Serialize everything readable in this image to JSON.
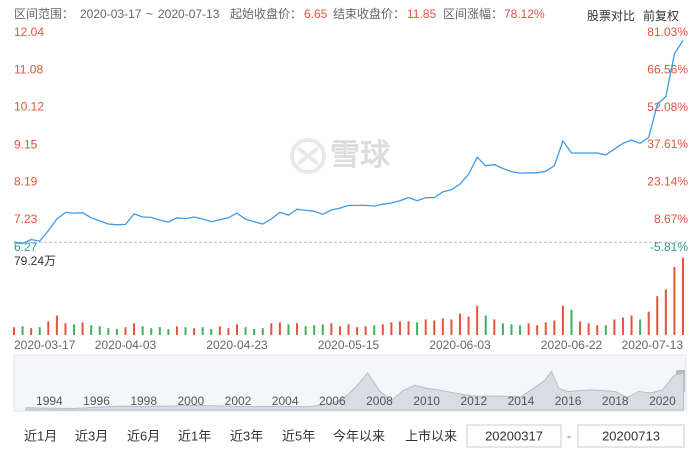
{
  "info": {
    "range_label": "区间范围：",
    "range_start": "2020-03-17",
    "range_sep": "~",
    "range_end": "2020-07-13",
    "start_label": "起始收盘价：",
    "start_price": 6.65,
    "end_label": "结束收盘价：",
    "end_price": 11.85,
    "change_label": "区间涨幅：",
    "change": "78.12%",
    "compare": "股票对比",
    "adjust": "前复权"
  },
  "watermark": "雪球",
  "chart_data": {
    "type": "line",
    "categories": [
      "2020-03-17",
      null,
      null,
      null,
      null,
      null,
      null,
      null,
      null,
      null,
      null,
      null,
      null,
      "2020-04-03",
      null,
      null,
      null,
      null,
      null,
      null,
      null,
      null,
      null,
      null,
      null,
      null,
      "2020-04-23",
      null,
      null,
      null,
      null,
      null,
      null,
      null,
      null,
      null,
      null,
      null,
      null,
      "2020-05-15",
      null,
      null,
      null,
      null,
      null,
      null,
      null,
      null,
      null,
      null,
      null,
      null,
      "2020-06-03",
      null,
      null,
      null,
      null,
      null,
      null,
      null,
      null,
      null,
      null,
      null,
      null,
      "2020-06-22",
      null,
      null,
      null,
      null,
      null,
      null,
      null,
      null,
      null,
      null,
      null,
      null,
      "2020-07-13"
    ],
    "series": [
      {
        "name": "price",
        "color": "#3d9be9",
        "values": [
          6.65,
          6.62,
          6.72,
          6.68,
          6.95,
          7.25,
          7.42,
          7.4,
          7.41,
          7.28,
          7.2,
          7.12,
          7.1,
          7.11,
          7.38,
          7.3,
          7.29,
          7.22,
          7.17,
          7.28,
          7.26,
          7.3,
          7.25,
          7.18,
          7.23,
          7.28,
          7.4,
          7.24,
          7.18,
          7.12,
          7.25,
          7.42,
          7.35,
          7.5,
          7.47,
          7.45,
          7.37,
          7.48,
          7.53,
          7.6,
          7.6,
          7.6,
          7.58,
          7.63,
          7.66,
          7.72,
          7.8,
          7.72,
          7.8,
          7.8,
          7.95,
          8.0,
          8.15,
          8.4,
          8.84,
          8.62,
          8.65,
          8.55,
          8.47,
          8.43,
          8.44,
          8.44,
          8.48,
          8.62,
          9.26,
          8.95,
          8.95,
          8.95,
          8.95,
          8.9,
          9.05,
          9.2,
          9.28,
          9.2,
          9.35,
          10.2,
          10.4,
          11.5,
          11.85
        ]
      }
    ],
    "volume": {
      "up_color": "#e5533d",
      "down_color": "#3db25b",
      "ylim": [
        0,
        79.24
      ],
      "yticks": [
        {
          "value": 79.24,
          "label": "79.24万"
        }
      ],
      "values": [
        8,
        9,
        7,
        8,
        14,
        20,
        12,
        11,
        13,
        10,
        9,
        7,
        6,
        8,
        12,
        9,
        7,
        8,
        6,
        9,
        8,
        7,
        8,
        6,
        9,
        7,
        11,
        8,
        6,
        7,
        12,
        13,
        11,
        12,
        9,
        10,
        11,
        12,
        9,
        11,
        8,
        9,
        10,
        11,
        13,
        14,
        14,
        13,
        16,
        15,
        17,
        16,
        22,
        19,
        30,
        20,
        16,
        12,
        11,
        10,
        12,
        10,
        13,
        15,
        30,
        26,
        14,
        12,
        10,
        10,
        16,
        18,
        20,
        16,
        24,
        40,
        47,
        70,
        79.24
      ]
    },
    "ylim": [
      6.27,
      12.04
    ],
    "yticks": [
      6.27,
      7.23,
      8.19,
      9.15,
      10.12,
      11.08,
      12.04
    ],
    "y2lim": [
      -5.81,
      81.03
    ],
    "y2ticks": [
      {
        "value": -5.81,
        "label": "-5.81%"
      },
      {
        "value": 8.67,
        "label": "8.67%"
      },
      {
        "value": 23.14,
        "label": "23.14%"
      },
      {
        "value": 37.61,
        "label": "37.61%"
      },
      {
        "value": 52.08,
        "label": "52.08%"
      },
      {
        "value": 66.56,
        "label": "66.56%"
      },
      {
        "value": 81.03,
        "label": "81.03%"
      }
    ],
    "up_color": "#e5533d",
    "down_color": "#2a9d8f"
  },
  "navigator": {
    "xlim": [
      1992.5,
      2021
    ],
    "ylim": [
      0,
      7
    ],
    "xticks": [
      1994,
      1996,
      1998,
      2000,
      2002,
      2004,
      2006,
      2008,
      2010,
      2012,
      2014,
      2016,
      2018,
      2020
    ],
    "x": [
      1993,
      1994,
      1995,
      1996,
      1997,
      1998,
      1999,
      2000,
      2001,
      2002,
      2003,
      2004,
      2005,
      2006,
      2006.5,
      2007,
      2007.5,
      2008,
      2008.5,
      2009,
      2009.5,
      2010,
      2010.5,
      2011,
      2012,
      2013,
      2014,
      2015,
      2015.3,
      2015.6,
      2016,
      2017,
      2018,
      2018.5,
      2019,
      2019.5,
      2020,
      2020.5,
      2020.9
    ],
    "values": [
      0.3,
      0.25,
      0.2,
      0.35,
      0.5,
      0.45,
      0.5,
      0.6,
      0.55,
      0.45,
      0.45,
      0.45,
      0.4,
      0.9,
      1.5,
      3.0,
      4.8,
      2.5,
      1.2,
      2.5,
      3.2,
      2.8,
      2.6,
      2.3,
      1.8,
      1.8,
      1.7,
      3.8,
      5.0,
      2.8,
      2.4,
      2.6,
      2.4,
      1.6,
      2.4,
      2.2,
      2.6,
      4.5,
      4.8
    ]
  },
  "controls": {
    "buttons": [
      "近1月",
      "近3月",
      "近6月",
      "近1年",
      "近3年",
      "近5年",
      "今年以来",
      "上市以来"
    ],
    "start_input": "20200317",
    "separator": "-",
    "end_input": "20200713"
  }
}
